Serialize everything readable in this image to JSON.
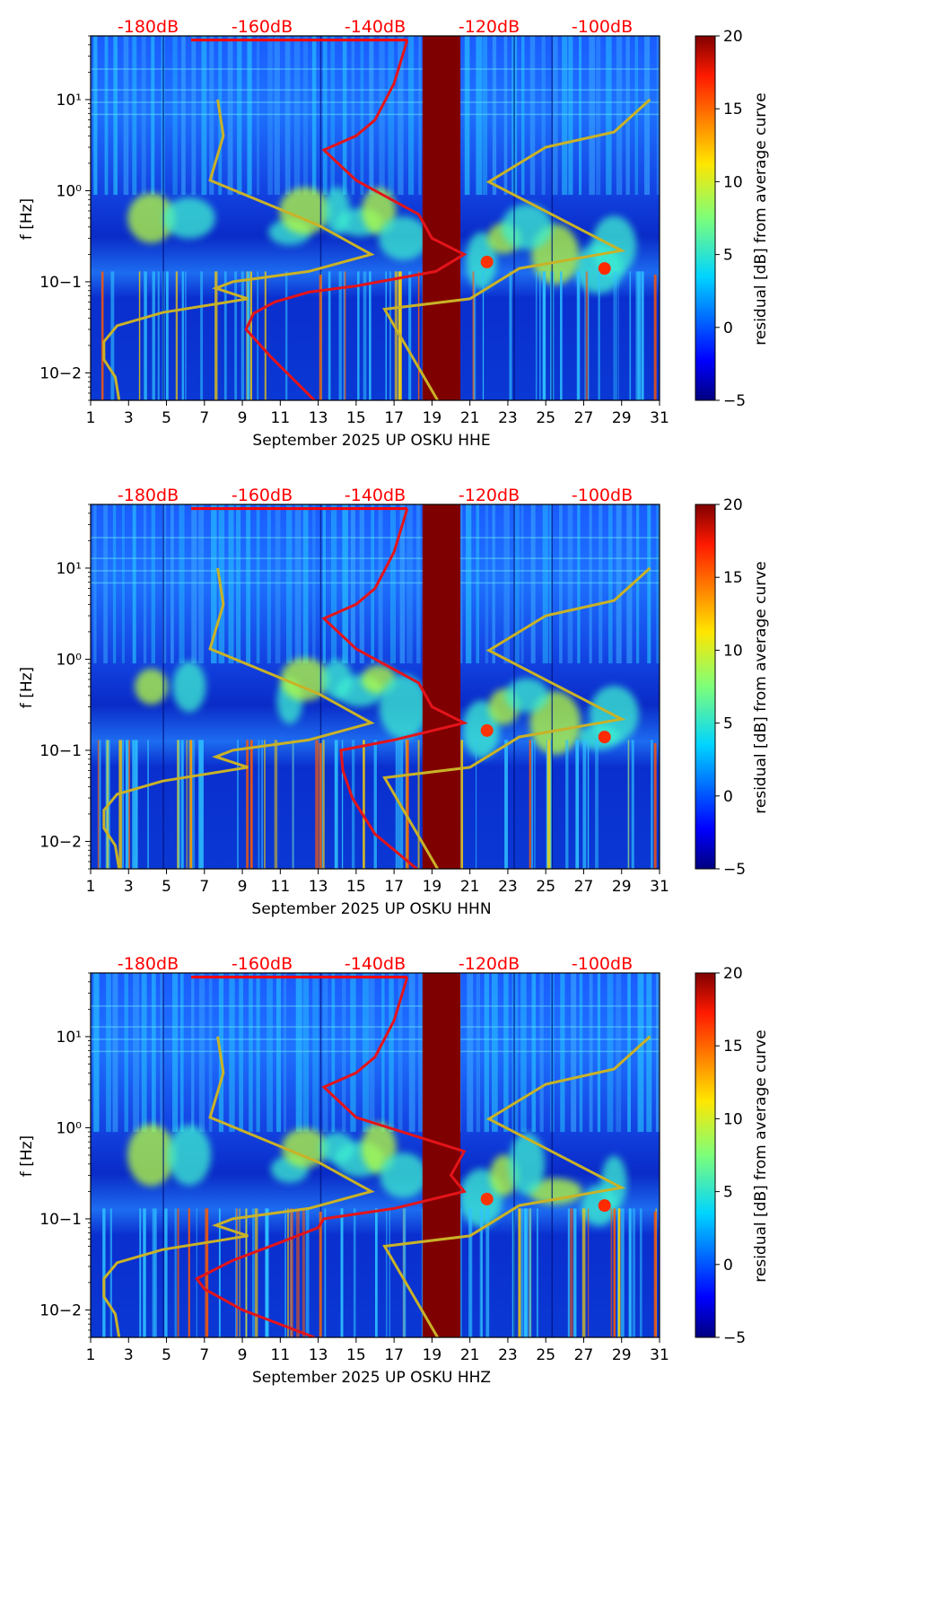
{
  "colors": {
    "noise_top": "#ff0000",
    "psd_curve": "#e3141a",
    "model_curve": "#c9b227",
    "gap": "#7f0000"
  },
  "chart_data": [
    {
      "type": "heatmap",
      "panel": "HHE",
      "xlabel": "September 2025 UP OSKU  HHE",
      "ylabel": "f [Hz]",
      "xlim": [
        1,
        31
      ],
      "ylim_hz": [
        0.005,
        50
      ],
      "x_ticks": [
        "1",
        "3",
        "5",
        "7",
        "9",
        "11",
        "13",
        "15",
        "17",
        "19",
        "21",
        "23",
        "25",
        "27",
        "29",
        "31"
      ],
      "y_ticks": [
        "10−2",
        "10−1",
        "10⁰",
        "10¹"
      ],
      "top_labels": [
        "-180dB",
        "-160dB",
        "-140dB",
        "-120dB",
        "-100dB"
      ],
      "colorbar": {
        "label": "residual [dB] from average curve",
        "range": [
          -5,
          20
        ],
        "ticks": [
          "−5",
          "0",
          "5",
          "10",
          "15",
          "20"
        ]
      },
      "data_gap_days": [
        18.5,
        20.5
      ],
      "model_curve_day_vs_hz": [
        [
          2.5,
          0.005
        ],
        [
          2.3,
          0.009
        ],
        [
          1.7,
          0.014
        ],
        [
          1.7,
          0.022
        ],
        [
          2.4,
          0.033
        ],
        [
          4.8,
          0.046
        ],
        [
          9.3,
          0.065
        ],
        [
          7.6,
          0.085
        ],
        [
          8.5,
          0.1
        ],
        [
          12.5,
          0.13
        ],
        [
          15.8,
          0.2
        ],
        [
          13,
          0.42
        ],
        [
          7.3,
          1.3
        ],
        [
          8,
          4
        ],
        [
          7.7,
          10
        ]
      ],
      "model_curve_right_day_vs_hz": [
        [
          19.3,
          0.005
        ],
        [
          16.5,
          0.05
        ],
        [
          21.0,
          0.065
        ],
        [
          23.6,
          0.14
        ],
        [
          29.0,
          0.22
        ],
        [
          22.0,
          1.25
        ],
        [
          25.0,
          3.0
        ],
        [
          28.6,
          4.4
        ],
        [
          30.5,
          10
        ]
      ],
      "psd_curve_day_vs_hz": [
        [
          12.8,
          0.005
        ],
        [
          10.5,
          0.015
        ],
        [
          9.2,
          0.03
        ],
        [
          9.6,
          0.045
        ],
        [
          10.7,
          0.06
        ],
        [
          12.5,
          0.077
        ],
        [
          15,
          0.09
        ],
        [
          19.2,
          0.13
        ],
        [
          20.7,
          0.2
        ],
        [
          19.0,
          0.3
        ],
        [
          18.3,
          0.55
        ],
        [
          15,
          1.3
        ],
        [
          13.3,
          2.8
        ],
        [
          15,
          4
        ],
        [
          16,
          6
        ],
        [
          17,
          15
        ],
        [
          17.7,
          45
        ]
      ]
    },
    {
      "type": "heatmap",
      "panel": "HHN",
      "xlabel": "September 2025 UP OSKU  HHN",
      "ylabel": "f [Hz]",
      "xlim": [
        1,
        31
      ],
      "ylim_hz": [
        0.005,
        50
      ],
      "x_ticks": [
        "1",
        "3",
        "5",
        "7",
        "9",
        "11",
        "13",
        "15",
        "17",
        "19",
        "21",
        "23",
        "25",
        "27",
        "29",
        "31"
      ],
      "y_ticks": [
        "10−2",
        "10−1",
        "10⁰",
        "10¹"
      ],
      "top_labels": [
        "-180dB",
        "-160dB",
        "-140dB",
        "-120dB",
        "-100dB"
      ],
      "colorbar": {
        "label": "residual [dB] from average curve",
        "range": [
          -5,
          20
        ],
        "ticks": [
          "−5",
          "0",
          "5",
          "10",
          "15",
          "20"
        ]
      },
      "data_gap_days": [
        18.5,
        20.5
      ],
      "model_curve_day_vs_hz": [
        [
          2.5,
          0.005
        ],
        [
          2.3,
          0.009
        ],
        [
          1.7,
          0.014
        ],
        [
          1.7,
          0.022
        ],
        [
          2.4,
          0.033
        ],
        [
          4.8,
          0.046
        ],
        [
          9.3,
          0.065
        ],
        [
          7.6,
          0.085
        ],
        [
          8.5,
          0.1
        ],
        [
          12.5,
          0.13
        ],
        [
          15.8,
          0.2
        ],
        [
          13,
          0.42
        ],
        [
          7.3,
          1.3
        ],
        [
          8,
          4
        ],
        [
          7.7,
          10
        ]
      ],
      "model_curve_right_day_vs_hz": [
        [
          19.3,
          0.005
        ],
        [
          16.5,
          0.05
        ],
        [
          21.0,
          0.065
        ],
        [
          23.6,
          0.14
        ],
        [
          29.0,
          0.22
        ],
        [
          22.0,
          1.25
        ],
        [
          25.0,
          3.0
        ],
        [
          28.6,
          4.4
        ],
        [
          30.5,
          10
        ]
      ],
      "psd_curve_day_vs_hz": [
        [
          18.2,
          0.005
        ],
        [
          16,
          0.012
        ],
        [
          14.8,
          0.03
        ],
        [
          14.3,
          0.06
        ],
        [
          14.2,
          0.1
        ],
        [
          17,
          0.13
        ],
        [
          20.7,
          0.2
        ],
        [
          19.0,
          0.3
        ],
        [
          18.3,
          0.55
        ],
        [
          15,
          1.3
        ],
        [
          13.3,
          2.8
        ],
        [
          15,
          4
        ],
        [
          16,
          6
        ],
        [
          17,
          15
        ],
        [
          17.7,
          45
        ]
      ]
    },
    {
      "type": "heatmap",
      "panel": "HHZ",
      "xlabel": "September 2025 UP OSKU  HHZ",
      "ylabel": "f [Hz]",
      "xlim": [
        1,
        31
      ],
      "ylim_hz": [
        0.005,
        50
      ],
      "x_ticks": [
        "1",
        "3",
        "5",
        "7",
        "9",
        "11",
        "13",
        "15",
        "17",
        "19",
        "21",
        "23",
        "25",
        "27",
        "29",
        "31"
      ],
      "y_ticks": [
        "10−2",
        "10−1",
        "10⁰",
        "10¹"
      ],
      "top_labels": [
        "-180dB",
        "-160dB",
        "-140dB",
        "-120dB",
        "-100dB"
      ],
      "colorbar": {
        "label": "residual [dB] from average curve",
        "range": [
          -5,
          20
        ],
        "ticks": [
          "−5",
          "0",
          "5",
          "10",
          "15",
          "20"
        ]
      },
      "data_gap_days": [
        18.5,
        20.5
      ],
      "model_curve_day_vs_hz": [
        [
          2.5,
          0.005
        ],
        [
          2.3,
          0.009
        ],
        [
          1.7,
          0.014
        ],
        [
          1.7,
          0.022
        ],
        [
          2.4,
          0.033
        ],
        [
          4.8,
          0.046
        ],
        [
          9.3,
          0.065
        ],
        [
          7.6,
          0.085
        ],
        [
          8.5,
          0.1
        ],
        [
          12.5,
          0.13
        ],
        [
          15.8,
          0.2
        ],
        [
          13,
          0.42
        ],
        [
          7.3,
          1.3
        ],
        [
          8,
          4
        ],
        [
          7.7,
          10
        ]
      ],
      "model_curve_right_day_vs_hz": [
        [
          19.3,
          0.005
        ],
        [
          16.5,
          0.05
        ],
        [
          21.0,
          0.065
        ],
        [
          23.6,
          0.14
        ],
        [
          29.0,
          0.22
        ],
        [
          22.0,
          1.25
        ],
        [
          25.0,
          3.0
        ],
        [
          28.6,
          4.4
        ],
        [
          30.5,
          10
        ]
      ],
      "psd_curve_day_vs_hz": [
        [
          12.8,
          0.005
        ],
        [
          9,
          0.01
        ],
        [
          7,
          0.017
        ],
        [
          6.6,
          0.022
        ],
        [
          8.5,
          0.035
        ],
        [
          11,
          0.055
        ],
        [
          13,
          0.08
        ],
        [
          13.3,
          0.1
        ],
        [
          17,
          0.13
        ],
        [
          20.7,
          0.2
        ],
        [
          20,
          0.3
        ],
        [
          20.7,
          0.55
        ],
        [
          15,
          1.3
        ],
        [
          13.3,
          2.8
        ],
        [
          15,
          4
        ],
        [
          16,
          6
        ],
        [
          17,
          15
        ],
        [
          17.7,
          45
        ]
      ]
    }
  ]
}
